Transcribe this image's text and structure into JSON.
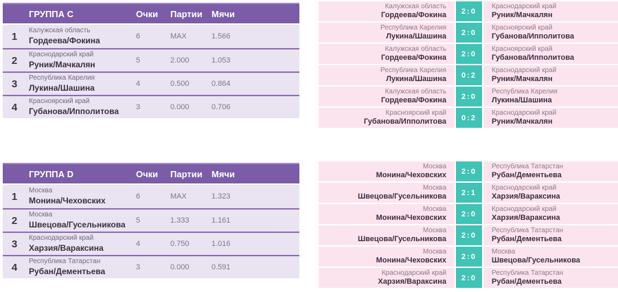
{
  "colors": {
    "header_purple": "#7b5ca6",
    "header_top_border": "#a48bc7",
    "row_lavender": "#eae3f1",
    "separator_purple": "#8d6cb4",
    "match_pink": "#fce4ee",
    "score_teal": "#41c3b6",
    "pos_text": "#3d3a40",
    "region_text": "#716b7c",
    "name_text": "#3a3140",
    "value_text": "#7d7887",
    "match_region_text": "#8d7b87",
    "match_name_text": "#3d3040"
  },
  "groups": [
    {
      "table": {
        "title": "ГРУППА C",
        "columns": [
          "Очки",
          "Партии",
          "Мячи"
        ],
        "rows": [
          {
            "pos": "1",
            "region": "Калужская область",
            "name": "Гордеева/Фокина",
            "points": "6",
            "games": "MAX",
            "balls": "1.566"
          },
          {
            "pos": "2",
            "region": "Краснодарский край",
            "name": "Руник/Мачкалян",
            "points": "5",
            "games": "2.000",
            "balls": "1.053"
          },
          {
            "pos": "3",
            "region": "Республика Карелия",
            "name": "Лукина/Шашина",
            "points": "4",
            "games": "0.500",
            "balls": "0.864"
          },
          {
            "pos": "4",
            "region": "Красноярский край",
            "name": "Губанова/Ипполитова",
            "points": "3",
            "games": "0.000",
            "balls": "0.706"
          }
        ]
      },
      "matches": [
        {
          "left_region": "Калужская область",
          "left_name": "Гордеева/Фокина",
          "score": "2:0",
          "right_region": "Краснодарский край",
          "right_name": "Руник/Мачкалян"
        },
        {
          "left_region": "Республика Карелия",
          "left_name": "Лукина/Шашина",
          "score": "2:0",
          "right_region": "Красноярский край",
          "right_name": "Губанова/Ипполитова"
        },
        {
          "left_region": "Калужская область",
          "left_name": "Гордеева/Фокина",
          "score": "2:0",
          "right_region": "Красноярский край",
          "right_name": "Губанова/Ипполитова"
        },
        {
          "left_region": "Республика Карелия",
          "left_name": "Лукина/Шашина",
          "score": "0:2",
          "right_region": "Краснодарский край",
          "right_name": "Руник/Мачкалян"
        },
        {
          "left_region": "Калужская область",
          "left_name": "Гордеева/Фокина",
          "score": "2:0",
          "right_region": "Республика Карелия",
          "right_name": "Лукина/Шашина"
        },
        {
          "left_region": "Красноярский край",
          "left_name": "Губанова/Ипполитова",
          "score": "0:2",
          "right_region": "Краснодарский край",
          "right_name": "Руник/Мачкалян"
        }
      ]
    },
    {
      "table": {
        "title": "ГРУППА D",
        "columns": [
          "Очки",
          "Партии",
          "Мячи"
        ],
        "rows": [
          {
            "pos": "1",
            "region": "Москва",
            "name": "Монина/Чеховских",
            "points": "6",
            "games": "MAX",
            "balls": "1.323"
          },
          {
            "pos": "2",
            "region": "Москва",
            "name": "Швецова/Гусельникова",
            "points": "5",
            "games": "1.333",
            "balls": "1.161"
          },
          {
            "pos": "3",
            "region": "Краснодарский край",
            "name": "Харзия/Вараксина",
            "points": "4",
            "games": "0.750",
            "balls": "1.016"
          },
          {
            "pos": "4",
            "region": "Республика Татарстан",
            "name": "Рубан/Дементьева",
            "points": "3",
            "games": "0.000",
            "balls": "0.591"
          }
        ]
      },
      "matches": [
        {
          "left_region": "Москва",
          "left_name": "Монина/Чеховских",
          "score": "2:0",
          "right_region": "Республика Татарстан",
          "right_name": "Рубан/Дементьева"
        },
        {
          "left_region": "Москва",
          "left_name": "Швецова/Гусельникова",
          "score": "2:1",
          "right_region": "Краснодарский край",
          "right_name": "Харзия/Вараксина"
        },
        {
          "left_region": "Москва",
          "left_name": "Монина/Чеховских",
          "score": "2:0",
          "right_region": "Краснодарский край",
          "right_name": "Харзия/Вараксина"
        },
        {
          "left_region": "Москва",
          "left_name": "Швецова/Гусельникова",
          "score": "2:0",
          "right_region": "Республика Татарстан",
          "right_name": "Рубан/Дементьева"
        },
        {
          "left_region": "Москва",
          "left_name": "Монина/Чеховских",
          "score": "2:0",
          "right_region": "Москва",
          "right_name": "Швецова/Гусельникова"
        },
        {
          "left_region": "Краснодарский край",
          "left_name": "Харзия/Вараксина",
          "score": "2:0",
          "right_region": "Республика Татарстан",
          "right_name": "Рубан/Дементьева"
        }
      ]
    }
  ]
}
